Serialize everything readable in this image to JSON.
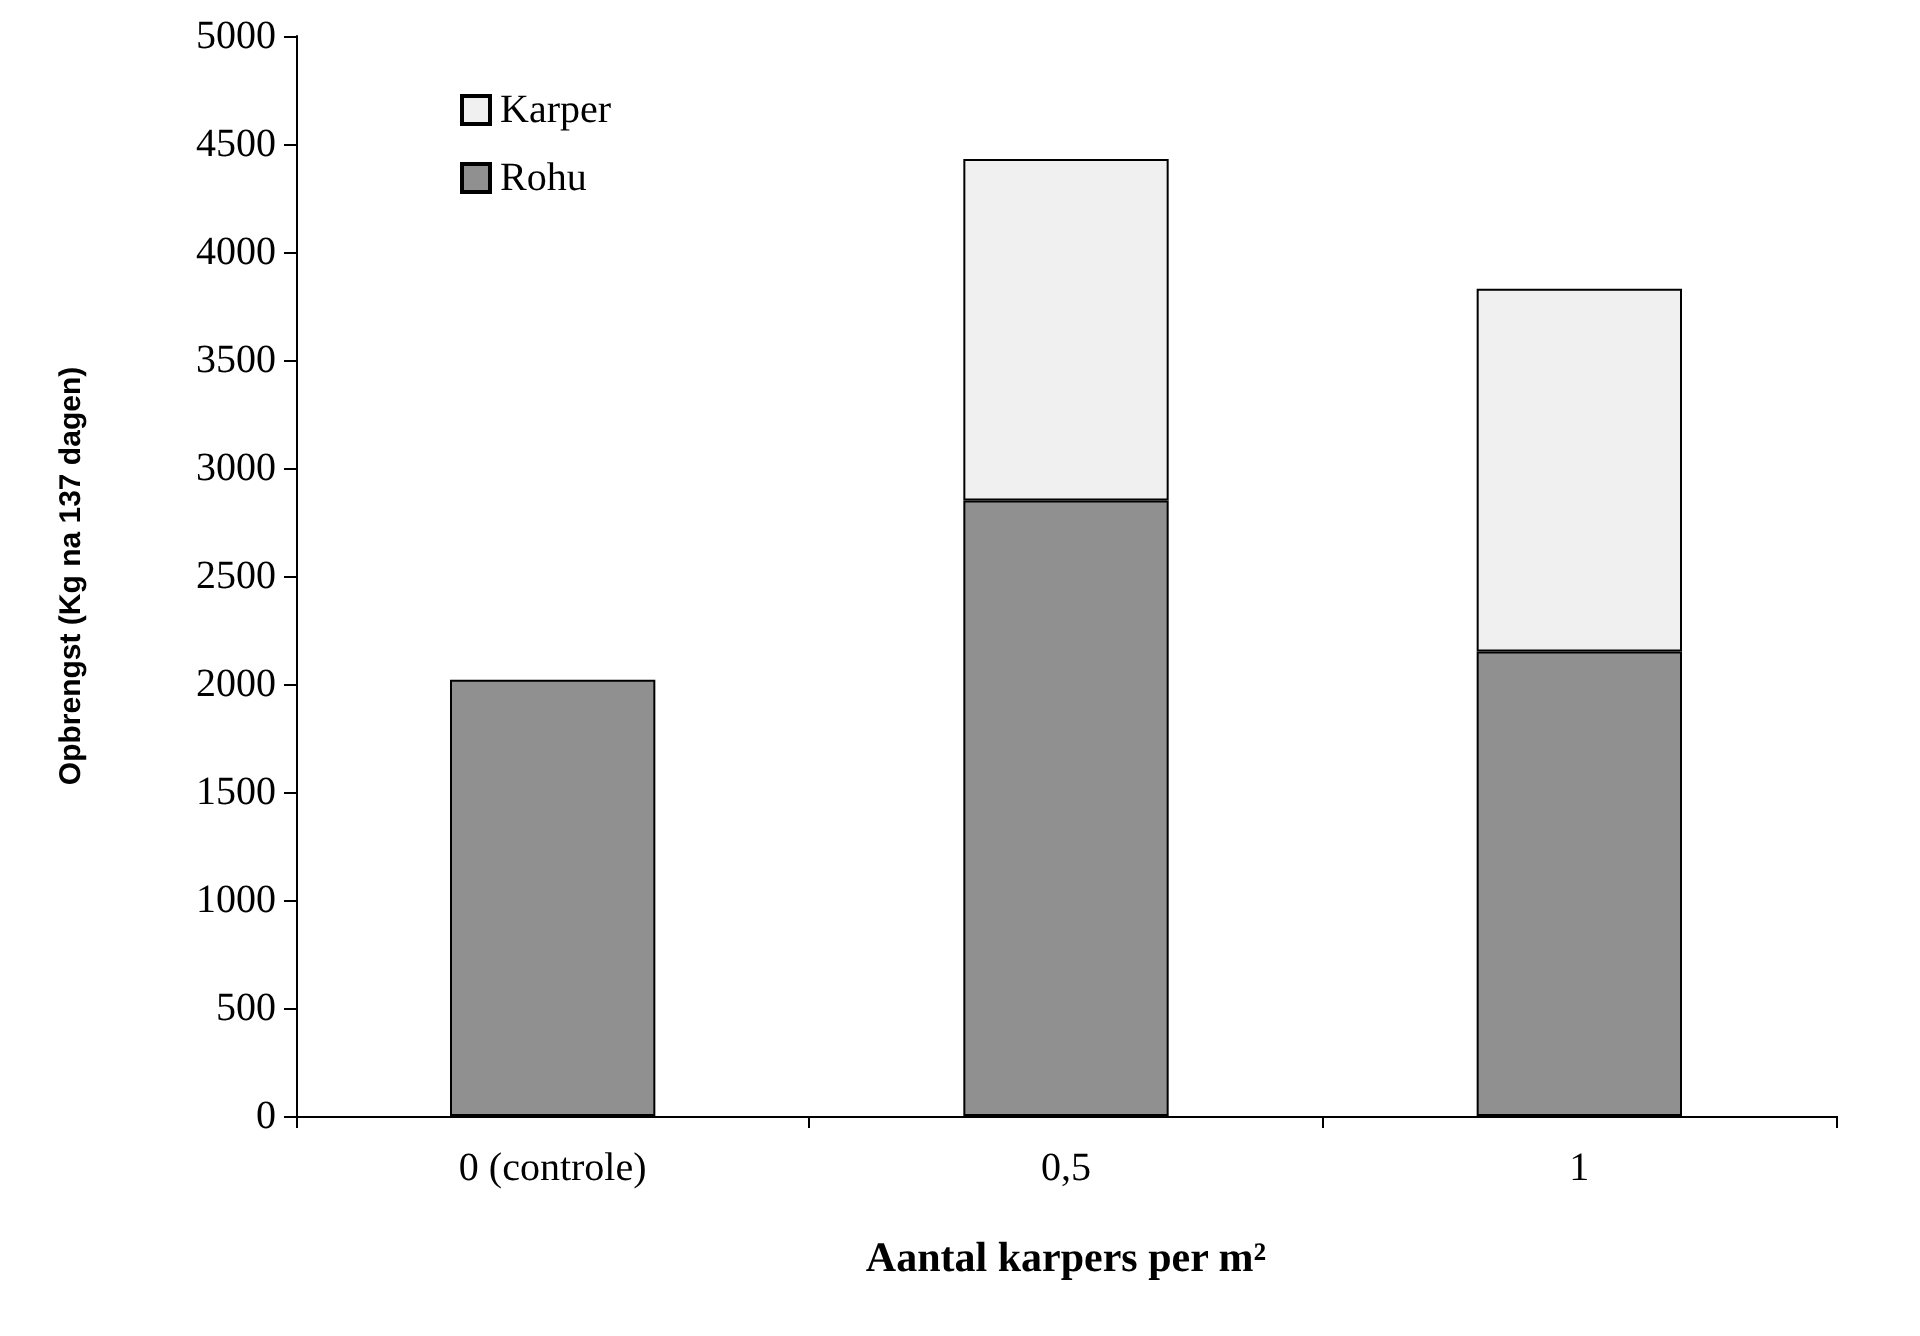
{
  "chart_data": {
    "type": "bar",
    "stacked": true,
    "xlabel": "Aantal karpers per m²",
    "ylabel": "Opbrengst (Kg na 137 dagen)",
    "categories": [
      "0 (controle)",
      "0,5",
      "1"
    ],
    "series": [
      {
        "name": "Rohu",
        "color": "#909090",
        "values": [
          2020,
          2850,
          2150
        ]
      },
      {
        "name": "Karper",
        "color": "#f0f0f0",
        "values": [
          null,
          1580,
          1680
        ]
      }
    ],
    "ylim": [
      0,
      5000
    ],
    "yticks": [
      0,
      500,
      1000,
      1500,
      2000,
      2500,
      3000,
      3500,
      4000,
      4500,
      5000
    ],
    "grid": false,
    "legend": "top left"
  }
}
